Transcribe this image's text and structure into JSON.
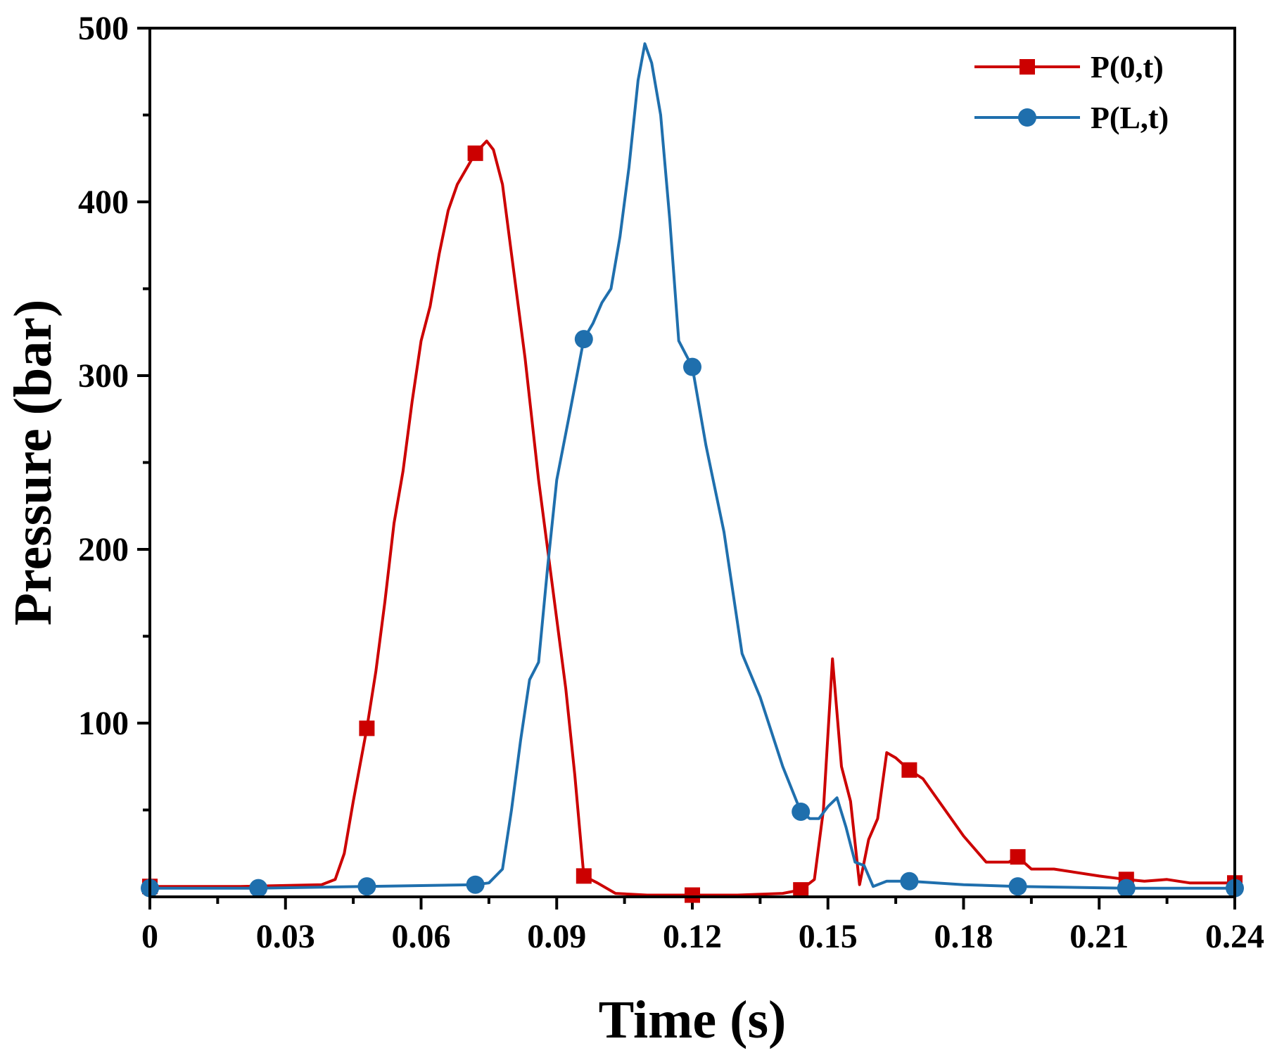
{
  "chart_data": {
    "type": "line",
    "title": "",
    "xlabel": "Time (s)",
    "ylabel": "Pressure (bar)",
    "xlim": [
      0,
      0.24
    ],
    "ylim": [
      0,
      500
    ],
    "x_ticks": [
      0,
      0.03,
      0.06,
      0.09,
      0.12,
      0.15,
      0.18,
      0.21,
      0.24
    ],
    "x_tick_labels": [
      "0",
      "0.03",
      "0.06",
      "0.09",
      "0.12",
      "0.15",
      "0.18",
      "0.21",
      "0.24"
    ],
    "y_ticks": [
      100,
      200,
      300,
      400,
      500
    ],
    "y_tick_labels": [
      "100",
      "200",
      "300",
      "400",
      "500"
    ],
    "grid": false,
    "legend_position": "top-right",
    "series": [
      {
        "name": "P(0,t)",
        "color": "#cc0000",
        "marker": "square",
        "points": [
          [
            0,
            6
          ],
          [
            0.02,
            6
          ],
          [
            0.038,
            7
          ],
          [
            0.041,
            10
          ],
          [
            0.043,
            25
          ],
          [
            0.045,
            55
          ],
          [
            0.048,
            97
          ],
          [
            0.05,
            130
          ],
          [
            0.052,
            170
          ],
          [
            0.054,
            215
          ],
          [
            0.056,
            245
          ],
          [
            0.058,
            285
          ],
          [
            0.06,
            320
          ],
          [
            0.062,
            340
          ],
          [
            0.064,
            370
          ],
          [
            0.066,
            395
          ],
          [
            0.068,
            410
          ],
          [
            0.072,
            428
          ],
          [
            0.0745,
            435
          ],
          [
            0.076,
            430
          ],
          [
            0.078,
            410
          ],
          [
            0.08,
            370
          ],
          [
            0.083,
            310
          ],
          [
            0.086,
            240
          ],
          [
            0.089,
            180
          ],
          [
            0.092,
            120
          ],
          [
            0.094,
            70
          ],
          [
            0.096,
            12
          ],
          [
            0.099,
            8
          ],
          [
            0.103,
            2
          ],
          [
            0.11,
            1
          ],
          [
            0.12,
            1
          ],
          [
            0.13,
            1
          ],
          [
            0.14,
            2
          ],
          [
            0.144,
            4
          ],
          [
            0.147,
            10
          ],
          [
            0.149,
            50
          ],
          [
            0.151,
            137
          ],
          [
            0.153,
            75
          ],
          [
            0.155,
            55
          ],
          [
            0.157,
            7
          ],
          [
            0.159,
            33
          ],
          [
            0.161,
            45
          ],
          [
            0.163,
            83
          ],
          [
            0.165,
            80
          ],
          [
            0.168,
            73
          ],
          [
            0.171,
            68
          ],
          [
            0.18,
            35
          ],
          [
            0.185,
            20
          ],
          [
            0.19,
            20
          ],
          [
            0.192,
            23
          ],
          [
            0.195,
            16
          ],
          [
            0.2,
            16
          ],
          [
            0.21,
            12
          ],
          [
            0.216,
            10
          ],
          [
            0.22,
            9
          ],
          [
            0.225,
            10
          ],
          [
            0.23,
            8
          ],
          [
            0.24,
            8
          ]
        ],
        "marker_points": [
          [
            0,
            6
          ],
          [
            0.048,
            97
          ],
          [
            0.072,
            428
          ],
          [
            0.096,
            12
          ],
          [
            0.12,
            1
          ],
          [
            0.144,
            4
          ],
          [
            0.168,
            73
          ],
          [
            0.192,
            23
          ],
          [
            0.216,
            10
          ],
          [
            0.24,
            8
          ]
        ]
      },
      {
        "name": "P(L,t)",
        "color": "#1f6fad",
        "marker": "circle",
        "points": [
          [
            0,
            5
          ],
          [
            0.024,
            5
          ],
          [
            0.048,
            6
          ],
          [
            0.072,
            7
          ],
          [
            0.075,
            8
          ],
          [
            0.078,
            16
          ],
          [
            0.08,
            50
          ],
          [
            0.082,
            90
          ],
          [
            0.084,
            125
          ],
          [
            0.086,
            135
          ],
          [
            0.088,
            190
          ],
          [
            0.09,
            240
          ],
          [
            0.093,
            280
          ],
          [
            0.096,
            321
          ],
          [
            0.098,
            330
          ],
          [
            0.1,
            342
          ],
          [
            0.102,
            350
          ],
          [
            0.104,
            380
          ],
          [
            0.106,
            420
          ],
          [
            0.108,
            470
          ],
          [
            0.1095,
            491
          ],
          [
            0.111,
            480
          ],
          [
            0.113,
            450
          ],
          [
            0.115,
            390
          ],
          [
            0.117,
            320
          ],
          [
            0.12,
            305
          ],
          [
            0.123,
            260
          ],
          [
            0.127,
            210
          ],
          [
            0.131,
            140
          ],
          [
            0.135,
            115
          ],
          [
            0.14,
            75
          ],
          [
            0.144,
            49
          ],
          [
            0.146,
            45
          ],
          [
            0.148,
            45
          ],
          [
            0.15,
            52
          ],
          [
            0.152,
            57
          ],
          [
            0.154,
            40
          ],
          [
            0.156,
            20
          ],
          [
            0.158,
            18
          ],
          [
            0.16,
            6
          ],
          [
            0.163,
            9
          ],
          [
            0.168,
            9
          ],
          [
            0.18,
            7
          ],
          [
            0.192,
            6
          ],
          [
            0.216,
            5
          ],
          [
            0.24,
            5
          ]
        ],
        "marker_points": [
          [
            0,
            5
          ],
          [
            0.024,
            5
          ],
          [
            0.048,
            6
          ],
          [
            0.072,
            7
          ],
          [
            0.096,
            321
          ],
          [
            0.12,
            305
          ],
          [
            0.144,
            49
          ],
          [
            0.168,
            9
          ],
          [
            0.192,
            6
          ],
          [
            0.216,
            5
          ],
          [
            0.24,
            5
          ]
        ]
      }
    ]
  }
}
